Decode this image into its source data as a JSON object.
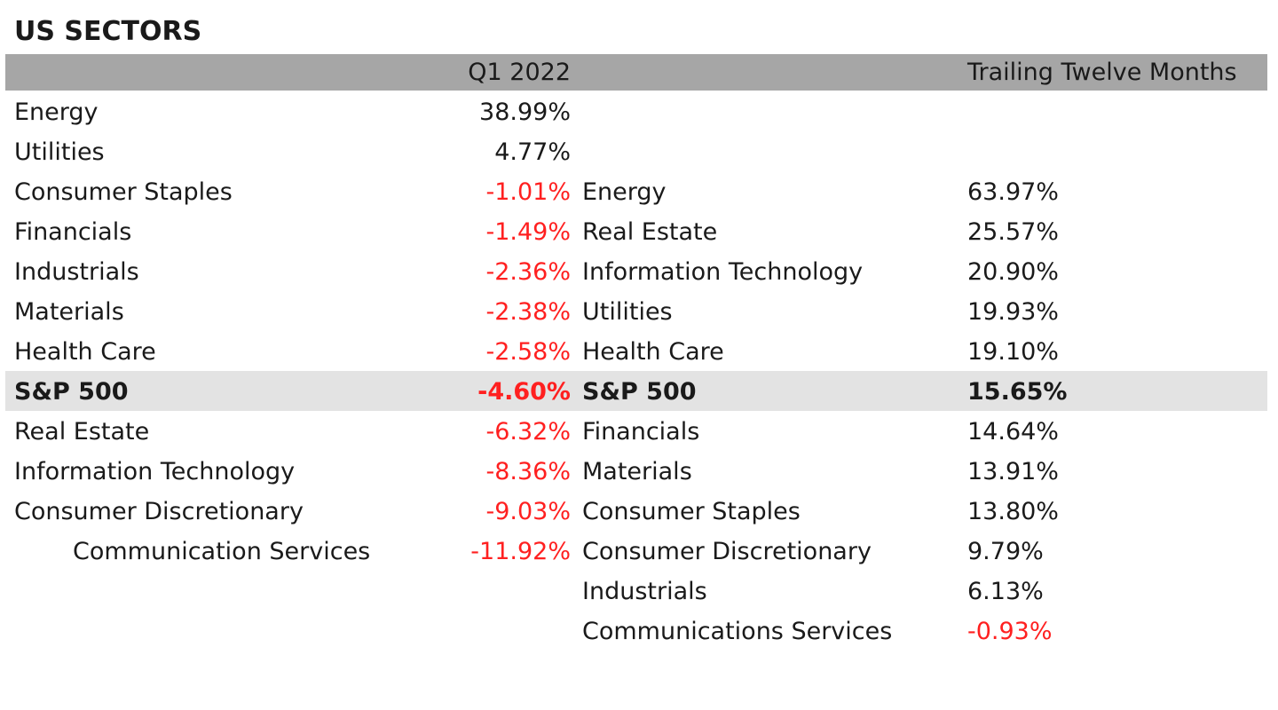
{
  "title": "US SECTORS",
  "headers": {
    "q1": "Q1 2022",
    "ttm": "Trailing Twelve Months"
  },
  "colors": {
    "header_bg": "#a6a6a6",
    "highlight_bg": "#e3e3e3",
    "negative": "#ff2020",
    "text": "#1a1a1a"
  },
  "q1_rows": [
    {
      "name": "Energy",
      "value": "38.99%"
    },
    {
      "name": "Utilities",
      "value": "4.77%"
    },
    {
      "name": "Consumer Staples",
      "value": "-1.01%"
    },
    {
      "name": "Financials",
      "value": "-1.49%"
    },
    {
      "name": "Industrials",
      "value": "-2.36%"
    },
    {
      "name": "Materials",
      "value": "-2.38%"
    },
    {
      "name": "Health Care",
      "value": "-2.58%"
    },
    {
      "name": "S&P 500",
      "value": "-4.60%"
    },
    {
      "name": "Real Estate",
      "value": "-6.32%"
    },
    {
      "name": "Information Technology",
      "value": "-8.36%"
    },
    {
      "name": "Consumer Discretionary",
      "value": "-9.03%"
    },
    {
      "name": "Communication Services",
      "value": "-11.92%"
    }
  ],
  "ttm_rows": [
    {
      "name": "Energy",
      "value": "63.97%"
    },
    {
      "name": "Real Estate",
      "value": "25.57%"
    },
    {
      "name": "Information Technology",
      "value": "20.90%"
    },
    {
      "name": "Utilities",
      "value": "19.93%"
    },
    {
      "name": "Health Care",
      "value": "19.10%"
    },
    {
      "name": "S&P 500",
      "value": "15.65%"
    },
    {
      "name": "Financials",
      "value": "14.64%"
    },
    {
      "name": "Materials",
      "value": "13.91%"
    },
    {
      "name": "Consumer Staples",
      "value": "13.80%"
    },
    {
      "name": "Consumer Discretionary",
      "value": "9.79%"
    },
    {
      "name": "Industrials",
      "value": "6.13%"
    },
    {
      "name": "Communications Services",
      "value": "-0.93%"
    }
  ],
  "chart_data": {
    "type": "table",
    "title": "US SECTORS",
    "columns": [
      "Q1 2022",
      "Trailing Twelve Months"
    ],
    "series": [
      {
        "name": "Q1 2022",
        "categories": [
          "Energy",
          "Utilities",
          "Consumer Staples",
          "Financials",
          "Industrials",
          "Materials",
          "Health Care",
          "S&P 500",
          "Real Estate",
          "Information Technology",
          "Consumer Discretionary",
          "Communication Services"
        ],
        "values": [
          38.99,
          4.77,
          -1.01,
          -1.49,
          -2.36,
          -2.38,
          -2.58,
          -4.6,
          -6.32,
          -8.36,
          -9.03,
          -11.92
        ]
      },
      {
        "name": "Trailing Twelve Months",
        "categories": [
          "Energy",
          "Real Estate",
          "Information Technology",
          "Utilities",
          "Health Care",
          "S&P 500",
          "Financials",
          "Materials",
          "Consumer Staples",
          "Consumer Discretionary",
          "Industrials",
          "Communications Services"
        ],
        "values": [
          63.97,
          25.57,
          20.9,
          19.93,
          19.1,
          15.65,
          14.64,
          13.91,
          13.8,
          9.79,
          6.13,
          -0.93
        ]
      }
    ]
  }
}
